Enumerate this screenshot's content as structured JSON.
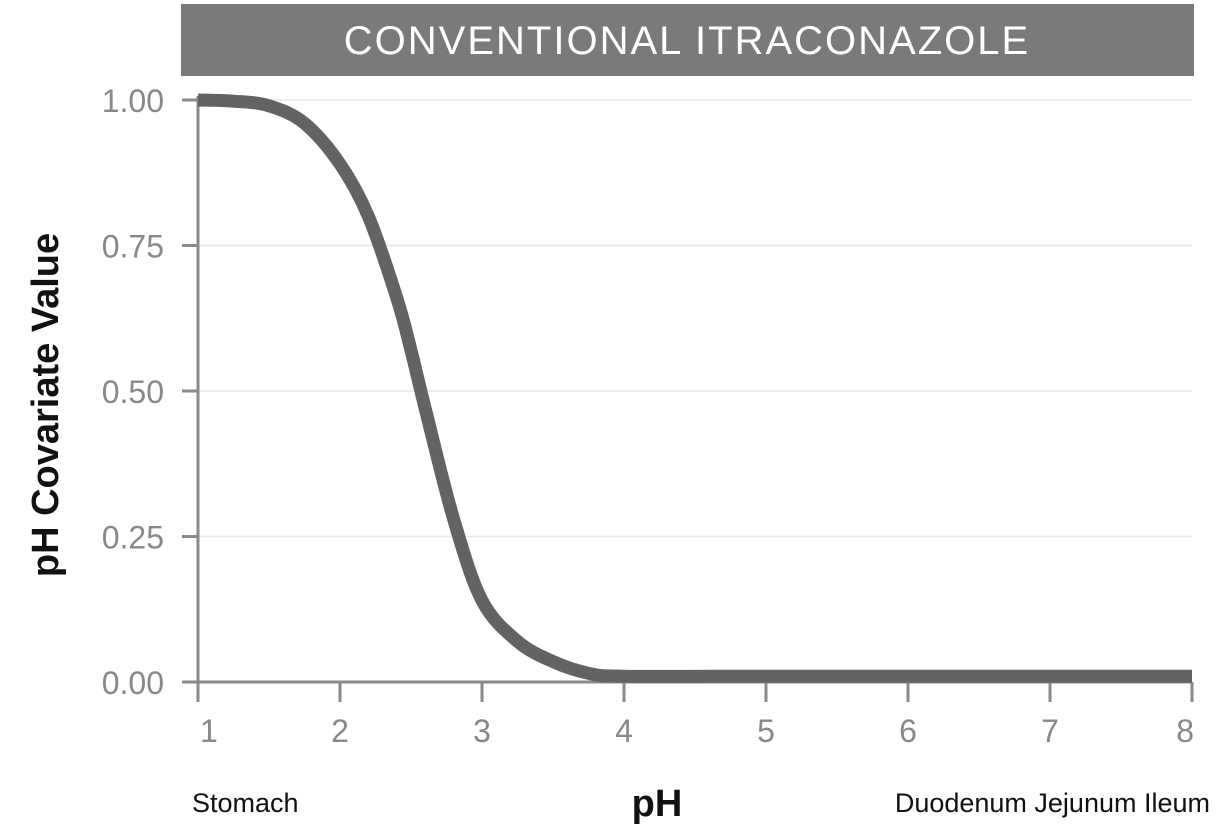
{
  "chart_data": {
    "type": "line",
    "title": "CONVENTIONAL ITRACONAZOLE",
    "xlabel": "pH",
    "ylabel": "pH Covariate Value",
    "xlim": [
      1,
      8
    ],
    "ylim": [
      0,
      1
    ],
    "x_ticks": [
      "1",
      "2",
      "3",
      "4",
      "5",
      "6",
      "7",
      "8"
    ],
    "y_ticks": [
      "0.00",
      "0.25",
      "0.50",
      "0.75",
      "1.00"
    ],
    "grid": true,
    "region_labels": {
      "left": "Stomach",
      "right": "Duodenum Jejunum Ileum"
    },
    "series": [
      {
        "x": [
          1.0,
          1.25,
          1.5,
          1.75,
          2.0,
          2.2,
          2.4,
          2.5,
          2.6,
          2.8,
          3.0,
          3.25,
          3.5,
          3.75,
          4.0,
          5.0,
          6.0,
          7.0,
          8.0
        ],
        "y": [
          1.0,
          0.998,
          0.99,
          0.96,
          0.89,
          0.8,
          0.66,
          0.57,
          0.47,
          0.28,
          0.14,
          0.07,
          0.035,
          0.015,
          0.01,
          0.01,
          0.01,
          0.01,
          0.01
        ]
      }
    ]
  },
  "colors": {
    "title_bar": "#7a7a7c",
    "title_text": "#ffffff",
    "line": "#636366",
    "axis": "#8a8a8a",
    "tick_label": "#888888",
    "grid": "#e6e6e6",
    "axis_label": "#111111"
  }
}
